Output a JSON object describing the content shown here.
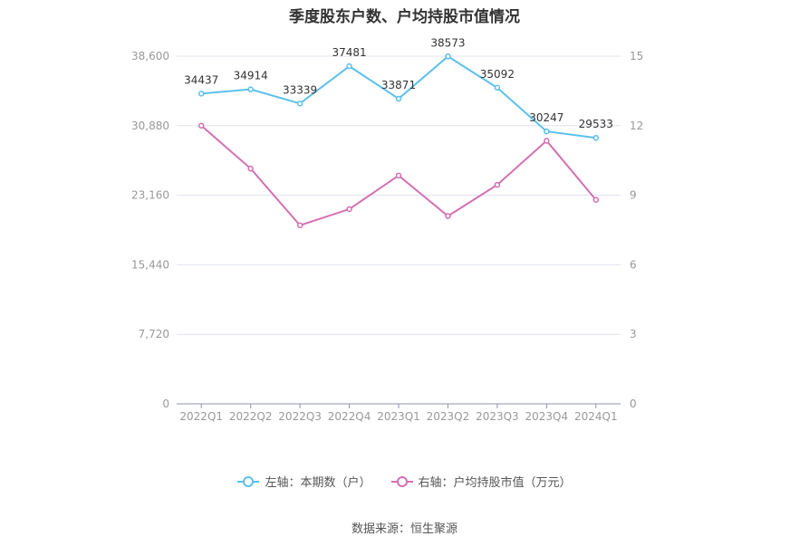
{
  "chart_data": {
    "type": "line",
    "title": "季度股东户数、户均持股市值情况",
    "categories": [
      "2022Q1",
      "2022Q2",
      "2022Q3",
      "2022Q4",
      "2023Q1",
      "2023Q2",
      "2023Q3",
      "2023Q4",
      "2024Q1"
    ],
    "series": [
      {
        "name": "左轴：本期数（户）",
        "axis": "left",
        "color": "#5bc0eb",
        "values": [
          34437,
          34914,
          33339,
          37481,
          33871,
          38573,
          35092,
          30247,
          29533
        ],
        "labels": [
          "34437",
          "34914",
          "33339",
          "37481",
          "33871",
          "38573",
          "35092",
          "30247",
          "29533"
        ]
      },
      {
        "name": "右轴：户均持股市值（万元）",
        "axis": "right",
        "color": "#d36fb3",
        "values": [
          12.0,
          10.15,
          7.7,
          8.4,
          9.85,
          8.1,
          9.45,
          11.35,
          8.8
        ]
      }
    ],
    "y_left": {
      "ylim": [
        0,
        38600
      ],
      "ticks": [
        "0",
        "7,720",
        "15,440",
        "23,160",
        "30,880",
        "38,600"
      ]
    },
    "y_right": {
      "ylim": [
        0,
        15
      ],
      "ticks": [
        "0",
        "3",
        "6",
        "9",
        "12",
        "15"
      ]
    },
    "grid": true,
    "legend_position": "bottom"
  },
  "source": "数据来源：恒生聚源"
}
